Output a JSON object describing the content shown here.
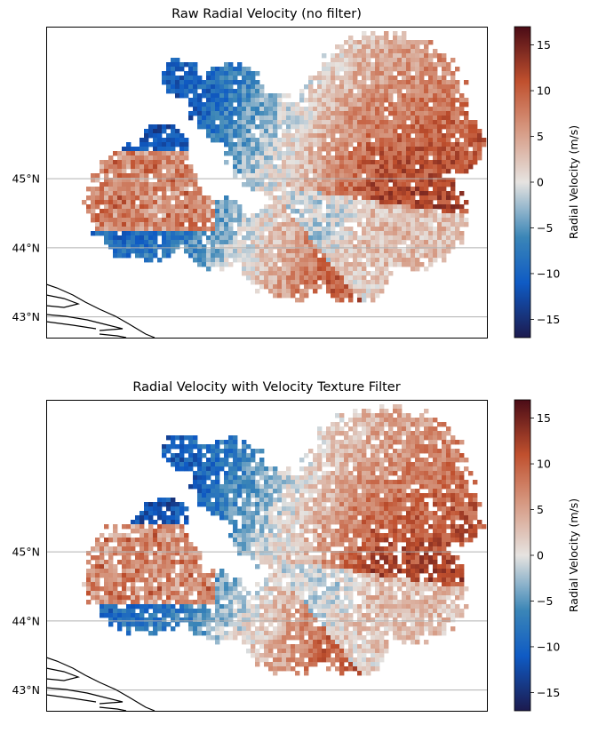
{
  "colors": {
    "neg_dark": "#1c1a4e",
    "neg_mid": "#0f5bc4",
    "neg_light": "#3b86b7",
    "neutral": "#e6e3e0",
    "pos_light": "#d5957d",
    "pos_mid": "#c0502e",
    "pos_dark": "#4a0b16",
    "coast": "#000000",
    "grid": "#b0b0b0"
  },
  "chart_data": [
    {
      "type": "heatmap",
      "title": "Raw Radial Velocity (no filter)",
      "y_ticks": [
        "43°N",
        "44°N",
        "45°N"
      ],
      "y_tick_values": [
        43,
        44,
        45
      ],
      "ylim": [
        42.7,
        47.2
      ],
      "grid": "horizontal latitude lines",
      "colorbar": {
        "label": "Radial Velocity (m/s)",
        "range": [
          -17,
          17
        ],
        "ticks": [
          -15,
          -10,
          -5,
          0,
          5,
          10,
          15
        ],
        "tick_labels": [
          "−15",
          "−10",
          "−5",
          "0",
          "5",
          "10",
          "15"
        ]
      },
      "coastline": "bottom-left corner"
    },
    {
      "type": "heatmap",
      "title": "Radial Velocity with Velocity Texture Filter",
      "y_ticks": [
        "43°N",
        "44°N",
        "45°N"
      ],
      "y_tick_values": [
        43,
        44,
        45
      ],
      "ylim": [
        42.7,
        47.2
      ],
      "grid": "horizontal latitude lines",
      "colorbar": {
        "label": "Radial Velocity (m/s)",
        "range": [
          -17,
          17
        ],
        "ticks": [
          -15,
          -10,
          -5,
          0,
          5,
          10,
          15
        ],
        "tick_labels": [
          "−15",
          "−10",
          "−5",
          "0",
          "5",
          "10",
          "15"
        ]
      },
      "coastline": "bottom-left corner"
    }
  ]
}
